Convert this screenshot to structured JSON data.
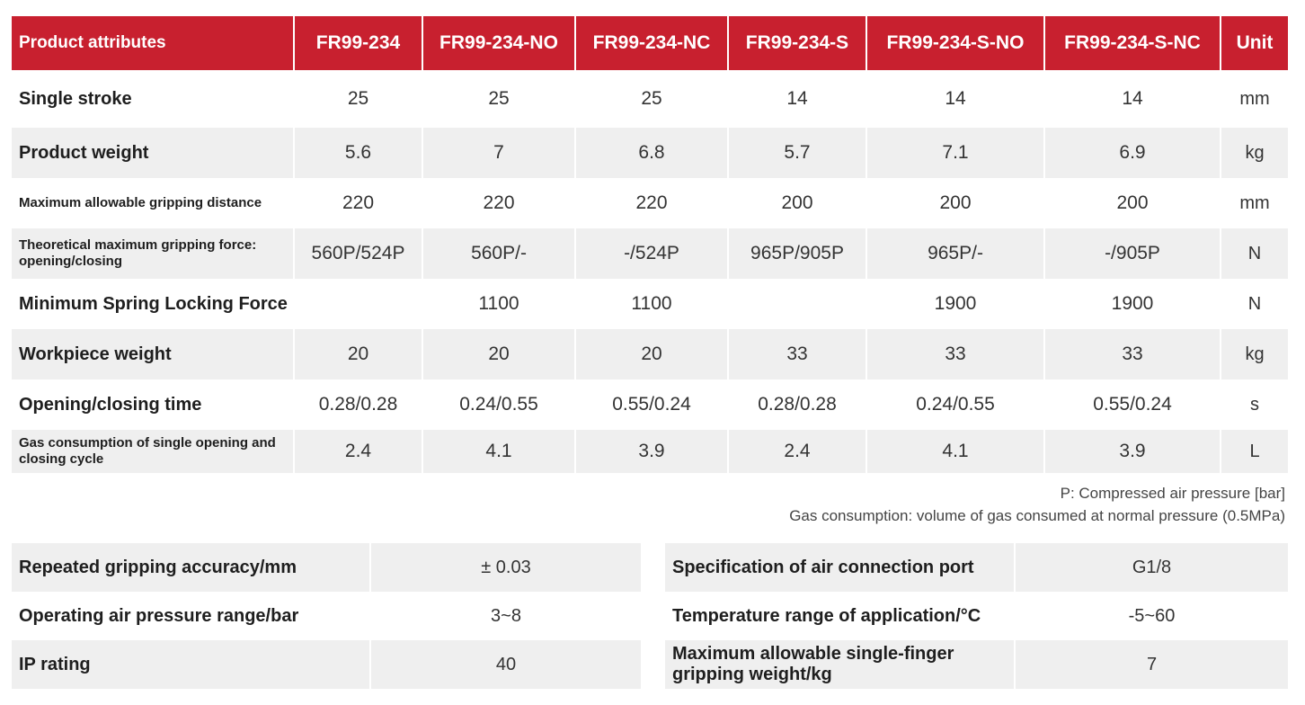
{
  "headers": [
    "Product attributes",
    "FR99-234",
    "FR99-234-NO",
    "FR99-234-NC",
    "FR99-234-S",
    "FR99-234-S-NO",
    "FR99-234-S-NC",
    "Unit"
  ],
  "rows": [
    {
      "attribute": "Single stroke",
      "values": [
        "25",
        "25",
        "25",
        "14",
        "14",
        "14"
      ],
      "unit": "mm"
    },
    {
      "attribute": "Product weight",
      "values": [
        "5.6",
        "7",
        "6.8",
        "5.7",
        "7.1",
        "6.9"
      ],
      "unit": "kg"
    },
    {
      "attribute": "Maximum allowable gripping distance",
      "values": [
        "220",
        "220",
        "220",
        "200",
        "200",
        "200"
      ],
      "unit": "mm"
    },
    {
      "attribute": "Theoretical maximum gripping force: opening/closing",
      "values": [
        "560P/524P",
        "560P/-",
        "-/524P",
        "965P/905P",
        "965P/-",
        "-/905P"
      ],
      "unit": "N"
    },
    {
      "attribute": "Minimum Spring Locking Force",
      "values": [
        "",
        "1100",
        "1100",
        "",
        "1900",
        "1900"
      ],
      "unit": "N"
    },
    {
      "attribute": "Workpiece weight",
      "values": [
        "20",
        "20",
        "20",
        "33",
        "33",
        "33"
      ],
      "unit": "kg"
    },
    {
      "attribute": "Opening/closing time",
      "values": [
        "0.28/0.28",
        "0.24/0.55",
        "0.55/0.24",
        "0.28/0.28",
        "0.24/0.55",
        "0.55/0.24"
      ],
      "unit": "s"
    },
    {
      "attribute": "Gas consumption of single opening and closing cycle",
      "values": [
        "2.4",
        "4.1",
        "3.9",
        "2.4",
        "4.1",
        "3.9"
      ],
      "unit": "L"
    }
  ],
  "notes": [
    "P: Compressed air pressure [bar]",
    "Gas consumption: volume of gas consumed at normal pressure (0.5MPa)"
  ],
  "left_specs": [
    {
      "label": "Repeated gripping accuracy/mm",
      "value": "± 0.03"
    },
    {
      "label": "Operating air pressure range/bar",
      "value": "3~8"
    },
    {
      "label": "IP rating",
      "value": "40"
    }
  ],
  "right_specs": [
    {
      "label": "Specification of air connection port",
      "value": "G1/8"
    },
    {
      "label": "Temperature range of application/°C",
      "value": "-5~60"
    },
    {
      "label": "Maximum allowable single-finger gripping weight/kg",
      "value": "7"
    }
  ],
  "colors": {
    "header_red": "#c8202f",
    "shade": "#efefef"
  }
}
